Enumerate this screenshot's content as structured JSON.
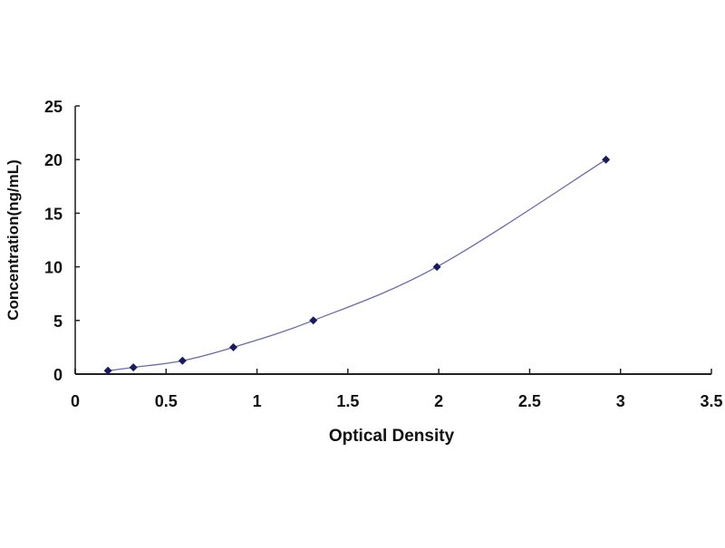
{
  "chart_data": {
    "type": "scatter",
    "title": "",
    "xlabel": "Optical Density",
    "ylabel": "Concentration(ng/mL)",
    "xlim": [
      0,
      3.5
    ],
    "ylim": [
      0,
      25
    ],
    "xticks": [
      "0",
      "0.5",
      "1",
      "1.5",
      "2",
      "2.5",
      "3",
      "3.5"
    ],
    "yticks": [
      "0",
      "5",
      "10",
      "15",
      "20",
      "25"
    ],
    "grid": false,
    "legend": "none",
    "series": [
      {
        "x": [
          0.18,
          0.32,
          0.59,
          0.87,
          1.31,
          1.99,
          2.92
        ],
        "y": [
          0.312,
          0.625,
          1.25,
          2.5,
          5,
          10,
          20
        ],
        "marker": "diamond",
        "marker_color": "#1a1a5e",
        "line_color": "#6a6aa8",
        "fit": "smooth-curve"
      }
    ]
  }
}
